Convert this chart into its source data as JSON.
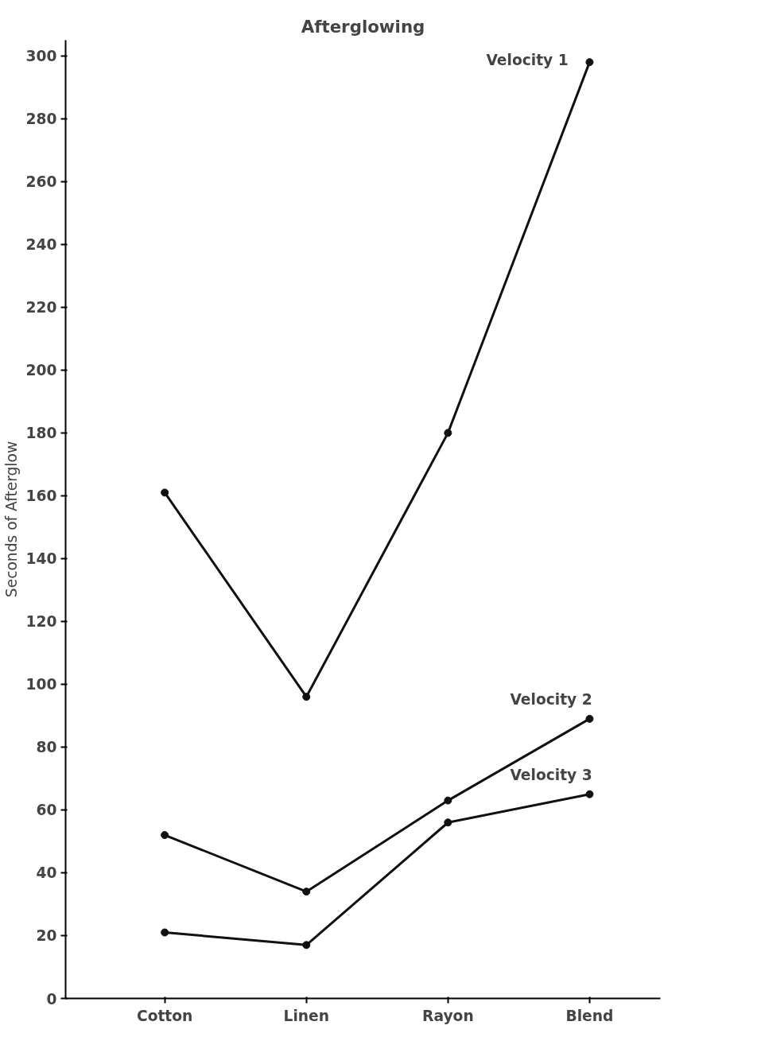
{
  "chart_data": {
    "type": "line",
    "title": "Afterglowing",
    "ylabel": "Seconds of Afterglow",
    "categories": [
      "Cotton",
      "Linen",
      "Rayon",
      "Blend"
    ],
    "series": [
      {
        "name": "Velocity 1",
        "color": "#111111",
        "values": [
          161,
          96,
          180,
          298
        ]
      },
      {
        "name": "Velocity 2",
        "color": "#111111",
        "values": [
          52,
          34,
          63,
          89
        ]
      },
      {
        "name": "Velocity 3",
        "color": "#111111",
        "values": [
          21,
          17,
          56,
          65
        ]
      }
    ],
    "ylim": [
      0,
      305
    ],
    "yticks": [
      0,
      20,
      40,
      60,
      80,
      100,
      120,
      140,
      160,
      180,
      200,
      220,
      240,
      260,
      280,
      300
    ],
    "grid": false,
    "marker": "circle",
    "line_style": "solid"
  }
}
